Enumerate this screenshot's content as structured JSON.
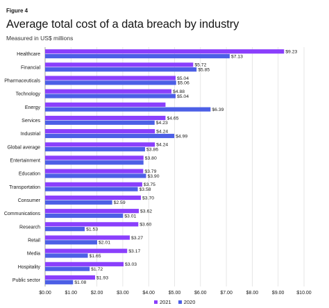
{
  "figure_label": "Figure 4",
  "chart_data": {
    "type": "bar",
    "orientation": "horizontal",
    "title": "Average total cost of a data breach by industry",
    "subtitle": "Measured in US$ millions",
    "xlim": [
      0,
      10
    ],
    "x_ticks": [
      "$0.00",
      "$1.00",
      "$2.00",
      "$3.00",
      "$4.00",
      "$5.00",
      "$6.00",
      "$7.00",
      "$8.00",
      "$9.00",
      "$10.00"
    ],
    "grid": true,
    "legend_position": "bottom",
    "categories": [
      "Healthcare",
      "Financial",
      "Pharmaceuticals",
      "Technology",
      "Energy",
      "Services",
      "Industrial",
      "Global average",
      "Entertainment",
      "Education",
      "Transportation",
      "Consumer",
      "Communications",
      "Research",
      "Retail",
      "Media",
      "Hospitality",
      "Public sector"
    ],
    "series": [
      {
        "name": "2021",
        "color": "#8a3ffc",
        "values": [
          9.23,
          5.72,
          5.04,
          4.88,
          4.65,
          4.65,
          4.24,
          4.24,
          3.8,
          3.79,
          3.75,
          3.7,
          3.62,
          3.6,
          3.27,
          3.17,
          3.03,
          1.93
        ],
        "labels": [
          "$9.23",
          "$5.72",
          "$5.04",
          "$4.88",
          "",
          "$4.65",
          "$4.24",
          "$4.24",
          "$3.80",
          "$3.79",
          "$3.75",
          "$3.70",
          "$3.62",
          "$3.60",
          "$3.27",
          "$3.17",
          "$3.03",
          "$1.93"
        ]
      },
      {
        "name": "2020",
        "color": "#4c5fe6",
        "values": [
          7.13,
          5.85,
          5.06,
          5.04,
          6.39,
          4.23,
          4.99,
          3.86,
          3.8,
          3.9,
          3.58,
          2.59,
          3.01,
          1.53,
          2.01,
          1.65,
          1.72,
          1.08
        ],
        "labels": [
          "$7.13",
          "$5.85",
          "$5.06",
          "$5.04",
          "$6.39",
          "$4.23",
          "$4.99",
          "$3.86",
          "",
          "$3.90",
          "$3.58",
          "$2.59",
          "$3.01",
          "$1.53",
          "$2.01",
          "$1.65",
          "$1.72",
          "$1.08"
        ]
      }
    ]
  }
}
